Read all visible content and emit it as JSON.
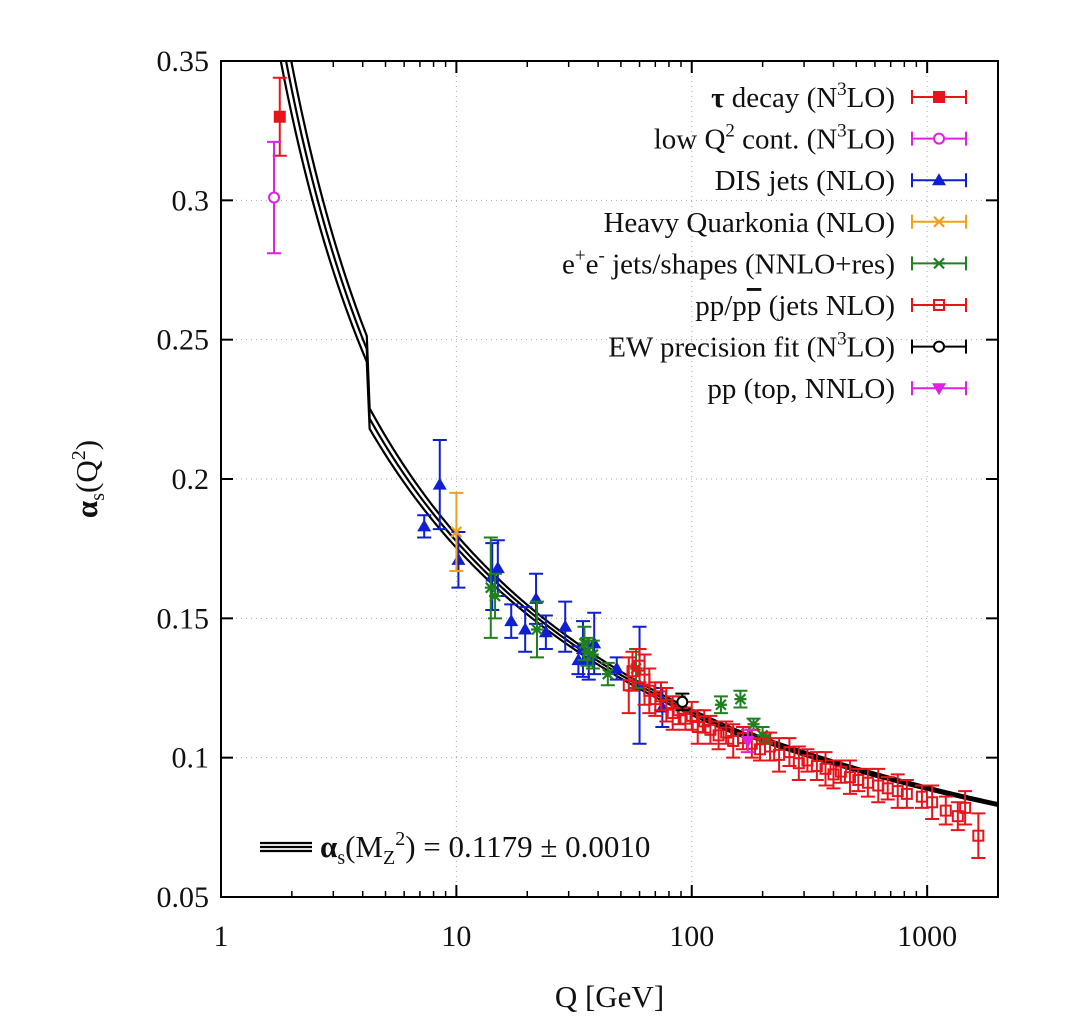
{
  "chart_data": {
    "type": "scatter",
    "title": "",
    "xlabel": "Q [GeV]",
    "ylabel": "αs(Q²)",
    "xscale": "log",
    "xlim": [
      1,
      2000
    ],
    "ylim": [
      0.05,
      0.35
    ],
    "xticks": [
      1,
      10,
      100,
      1000
    ],
    "xtick_labels": [
      "1",
      "10",
      "100",
      "1000"
    ],
    "yticks": [
      0.05,
      0.1,
      0.15,
      0.2,
      0.25,
      0.3,
      0.35
    ],
    "ytick_labels": [
      "0.05",
      "0.1",
      "0.15",
      "0.2",
      "0.25",
      "0.3",
      "0.35"
    ],
    "grid": "dotted",
    "legend_position": "top-right",
    "band": {
      "label_main": "α",
      "label_sub1": "s",
      "label_paren": "(M",
      "label_sub2": "Z",
      "label_sup": "2",
      "label_rest": ") = 0.1179 ± 0.0010",
      "alpha_mz": 0.1179,
      "uncertainty": 0.001,
      "mz": 91.1876,
      "color": "#000000"
    },
    "series": [
      {
        "name": "tau_decay",
        "legend": [
          {
            "t": "τ decay (N"
          },
          {
            "t": "3",
            "sup": true
          },
          {
            "t": "LO)"
          }
        ],
        "color": "#e8141c",
        "marker": "square-filled",
        "points": [
          [
            1.777,
            0.33,
            0.014
          ]
        ]
      },
      {
        "name": "low_q2",
        "legend": [
          {
            "t": "low Q"
          },
          {
            "t": "2",
            "sup": true
          },
          {
            "t": " cont. (N"
          },
          {
            "t": "3",
            "sup": true
          },
          {
            "t": "LO)"
          }
        ],
        "color": "#e020e0",
        "marker": "circle-open",
        "points": [
          [
            1.68,
            0.301,
            0.02
          ]
        ]
      },
      {
        "name": "dis_jets",
        "legend": [
          {
            "t": "DIS jets (NLO)"
          }
        ],
        "color": "#1020d0",
        "marker": "triangle-up-filled",
        "points": [
          [
            7.3,
            0.183,
            0.004
          ],
          [
            8.5,
            0.198,
            0.016
          ],
          [
            10.2,
            0.171,
            0.01
          ],
          [
            14.2,
            0.165,
            0.012
          ],
          [
            15.0,
            0.168,
            0.01
          ],
          [
            17.1,
            0.149,
            0.006
          ],
          [
            19.6,
            0.146,
            0.008
          ],
          [
            21.8,
            0.157,
            0.009
          ],
          [
            24.0,
            0.145,
            0.006
          ],
          [
            29.0,
            0.147,
            0.009
          ],
          [
            33.0,
            0.135,
            0.005
          ],
          [
            34.5,
            0.139,
            0.01
          ],
          [
            36.5,
            0.135,
            0.007
          ],
          [
            38.5,
            0.141,
            0.011
          ],
          [
            48.0,
            0.132,
            0.004
          ],
          [
            60.0,
            0.126,
            0.021
          ],
          [
            75.0,
            0.118,
            0.007
          ]
        ]
      },
      {
        "name": "heavy_quarkonia",
        "legend": [
          {
            "t": "Heavy Quarkonia (NLO)"
          }
        ],
        "color": "#f0a020",
        "marker": "x",
        "points": [
          [
            10.0,
            0.181,
            0.014
          ]
        ]
      },
      {
        "name": "ee_jets_shapes",
        "legend": [
          {
            "t": "e"
          },
          {
            "t": "+",
            "sup": true
          },
          {
            "t": "e"
          },
          {
            "t": "-",
            "sup": true
          },
          {
            "t": " jets/shapes (NNLO+res)"
          }
        ],
        "color": "#208020",
        "marker": "star",
        "points": [
          [
            14.0,
            0.161,
            0.018
          ],
          [
            14.6,
            0.158,
            0.008
          ],
          [
            22.0,
            0.146,
            0.01
          ],
          [
            35.0,
            0.141,
            0.006
          ],
          [
            36.0,
            0.138,
            0.005
          ],
          [
            38.0,
            0.137,
            0.005
          ],
          [
            44.0,
            0.13,
            0.004
          ],
          [
            58.0,
            0.132,
            0.007
          ],
          [
            133.0,
            0.119,
            0.003
          ],
          [
            161.0,
            0.121,
            0.003
          ],
          [
            183.0,
            0.112,
            0.002
          ],
          [
            200.0,
            0.108,
            0.003
          ],
          [
            207.0,
            0.107,
            0.002
          ]
        ]
      },
      {
        "name": "pp_ppbar_jets",
        "legend": [
          {
            "t": "pp/p"
          },
          {
            "t": "p",
            "bar": true
          },
          {
            "t": " (jets NLO)"
          }
        ],
        "color": "#e8141c",
        "marker": "square-open",
        "points": [
          [
            54,
            0.126,
            0.01
          ],
          [
            56,
            0.131,
            0.007
          ],
          [
            60,
            0.133,
            0.006
          ],
          [
            63,
            0.128,
            0.009
          ],
          [
            66,
            0.124,
            0.008
          ],
          [
            70,
            0.121,
            0.006
          ],
          [
            74,
            0.122,
            0.005
          ],
          [
            78,
            0.119,
            0.006
          ],
          [
            83,
            0.116,
            0.006
          ],
          [
            88,
            0.117,
            0.005
          ],
          [
            94,
            0.114,
            0.004
          ],
          [
            100,
            0.115,
            0.005
          ],
          [
            106,
            0.111,
            0.006
          ],
          [
            113,
            0.113,
            0.004
          ],
          [
            120,
            0.11,
            0.005
          ],
          [
            130,
            0.108,
            0.005
          ],
          [
            140,
            0.109,
            0.004
          ],
          [
            150,
            0.106,
            0.006
          ],
          [
            165,
            0.107,
            0.004
          ],
          [
            180,
            0.105,
            0.005
          ],
          [
            195,
            0.103,
            0.004
          ],
          [
            215,
            0.104,
            0.005
          ],
          [
            235,
            0.101,
            0.006
          ],
          [
            260,
            0.102,
            0.005
          ],
          [
            285,
            0.098,
            0.006
          ],
          [
            310,
            0.099,
            0.004
          ],
          [
            340,
            0.097,
            0.005
          ],
          [
            370,
            0.096,
            0.006
          ],
          [
            400,
            0.094,
            0.005
          ],
          [
            430,
            0.095,
            0.004
          ],
          [
            470,
            0.093,
            0.006
          ],
          [
            510,
            0.092,
            0.004
          ],
          [
            560,
            0.091,
            0.005
          ],
          [
            620,
            0.09,
            0.006
          ],
          [
            680,
            0.089,
            0.004
          ],
          [
            750,
            0.088,
            0.006
          ],
          [
            820,
            0.087,
            0.005
          ],
          [
            950,
            0.086,
            0.004
          ],
          [
            1050,
            0.084,
            0.006
          ],
          [
            1200,
            0.081,
            0.005
          ],
          [
            1350,
            0.079,
            0.005
          ],
          [
            1450,
            0.082,
            0.006
          ],
          [
            1650,
            0.072,
            0.008
          ]
        ]
      },
      {
        "name": "ew_precision_fit",
        "legend": [
          {
            "t": "EW precision fit (N"
          },
          {
            "t": "3",
            "sup": true
          },
          {
            "t": "LO)"
          }
        ],
        "color": "#000000",
        "marker": "circle-open",
        "points": [
          [
            91.2,
            0.12,
            0.003
          ]
        ]
      },
      {
        "name": "pp_top",
        "legend": [
          {
            "t": "pp (top, NNLO)"
          }
        ],
        "color": "#e020e0",
        "marker": "triangle-down-filled",
        "points": [
          [
            173.0,
            0.106,
            0.004
          ]
        ]
      }
    ]
  }
}
